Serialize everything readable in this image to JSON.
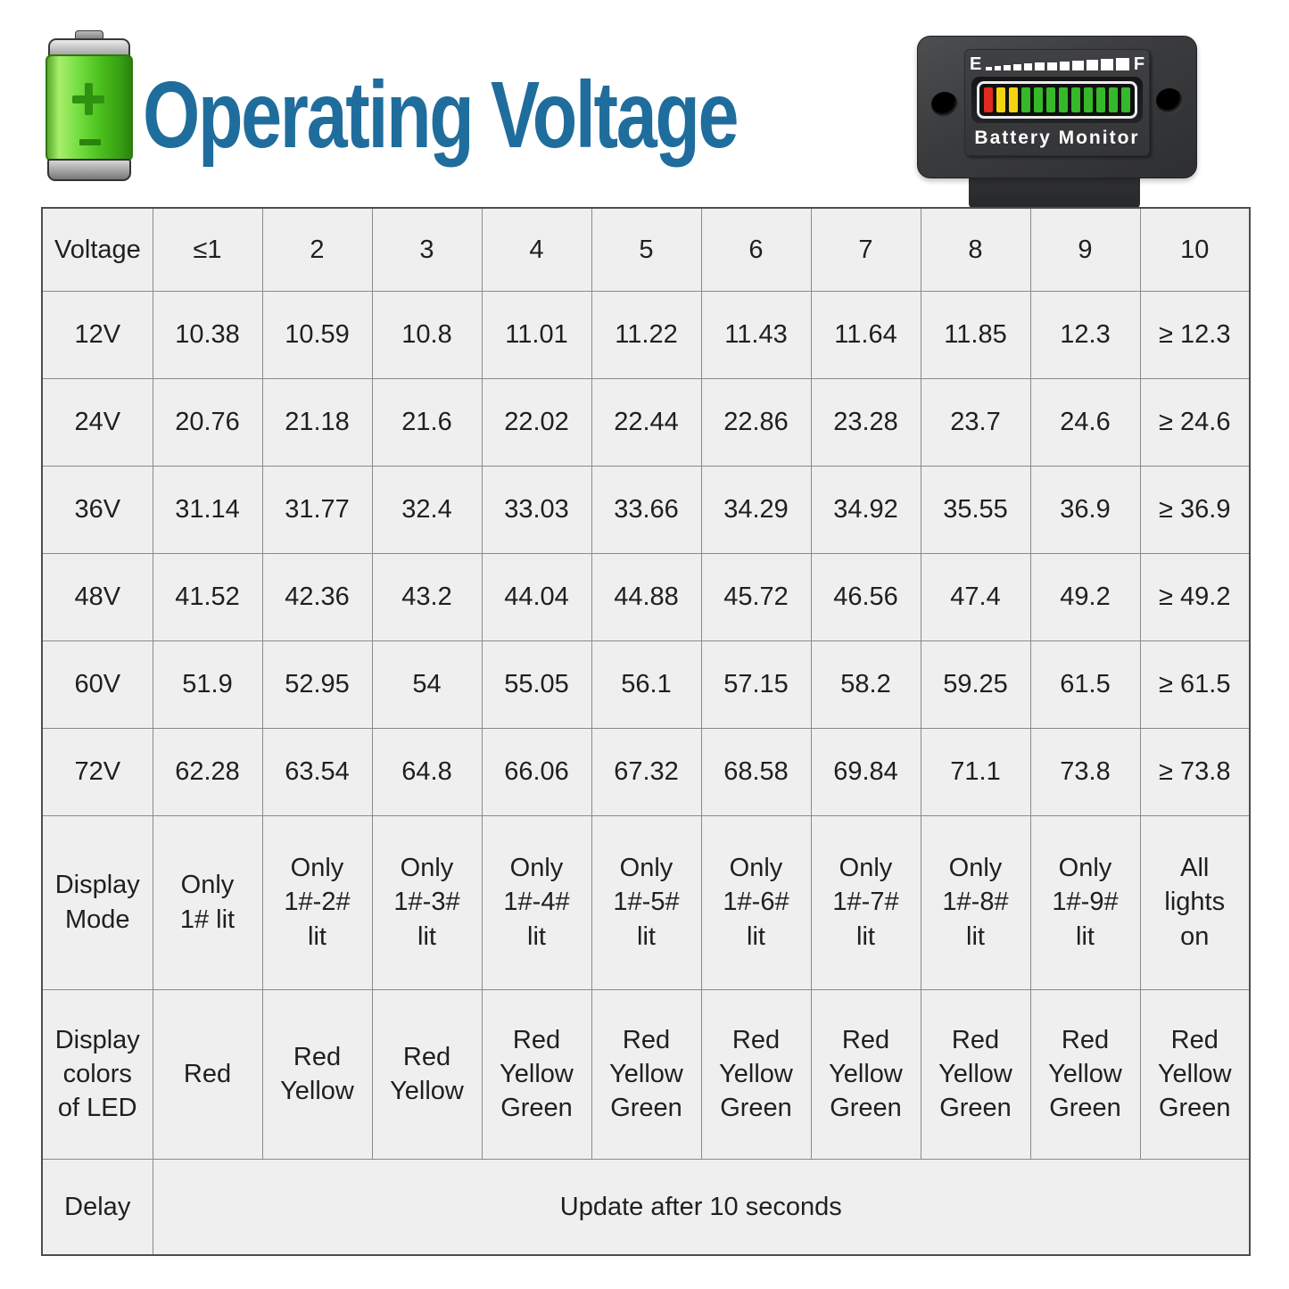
{
  "title": "Operating Voltage",
  "monitor": {
    "empty_label": "E",
    "full_label": "F",
    "label": "Battery Monitor",
    "gauge_squares": 12,
    "led_bars": [
      "red",
      "yellow",
      "yellow",
      "green",
      "green",
      "green",
      "green",
      "green",
      "green",
      "green",
      "green",
      "green"
    ]
  },
  "colors": {
    "title_blue": "#1f6d9d",
    "battery_green": "#4cc11f",
    "cell_bg": "#efefef",
    "border_gray": "#8a8a8a",
    "led_red": "#e02b20",
    "led_yellow": "#f2d411",
    "led_green": "#35b82a"
  },
  "chart_data": {
    "type": "table",
    "title": "Operating Voltage",
    "columns": [
      "Voltage",
      "≤1",
      "2",
      "3",
      "4",
      "5",
      "6",
      "7",
      "8",
      "9",
      "10"
    ],
    "rows": [
      {
        "label": "12V",
        "values": [
          "10.38",
          "10.59",
          "10.8",
          "11.01",
          "11.22",
          "11.43",
          "11.64",
          "11.85",
          "12.3",
          "≥ 12.3"
        ]
      },
      {
        "label": "24V",
        "values": [
          "20.76",
          "21.18",
          "21.6",
          "22.02",
          "22.44",
          "22.86",
          "23.28",
          "23.7",
          "24.6",
          "≥ 24.6"
        ]
      },
      {
        "label": "36V",
        "values": [
          "31.14",
          "31.77",
          "32.4",
          "33.03",
          "33.66",
          "34.29",
          "34.92",
          "35.55",
          "36.9",
          "≥ 36.9"
        ]
      },
      {
        "label": "48V",
        "values": [
          "41.52",
          "42.36",
          "43.2",
          "44.04",
          "44.88",
          "45.72",
          "46.56",
          "47.4",
          "49.2",
          "≥ 49.2"
        ]
      },
      {
        "label": "60V",
        "values": [
          "51.9",
          "52.95",
          "54",
          "55.05",
          "56.1",
          "57.15",
          "58.2",
          "59.25",
          "61.5",
          "≥ 61.5"
        ]
      },
      {
        "label": "72V",
        "values": [
          "62.28",
          "63.54",
          "64.8",
          "66.06",
          "67.32",
          "68.58",
          "69.84",
          "71.1",
          "73.8",
          "≥ 73.8"
        ]
      },
      {
        "label": "Display Mode",
        "values": [
          "Only 1# lit",
          "Only 1#-2# lit",
          "Only 1#-3# lit",
          "Only 1#-4# lit",
          "Only 1#-5# lit",
          "Only 1#-6# lit",
          "Only 1#-7# lit",
          "Only 1#-8# lit",
          "Only 1#-9# lit",
          "All lights on"
        ]
      },
      {
        "label": "Display colors of LED",
        "values": [
          "Red",
          "Red Yellow",
          "Red Yellow",
          "Red Yellow Green",
          "Red Yellow Green",
          "Red Yellow Green",
          "Red Yellow Green",
          "Red Yellow Green",
          "Red Yellow Green",
          "Red Yellow Green"
        ]
      },
      {
        "label": "Delay",
        "span_value": "Update after 10 seconds"
      }
    ]
  }
}
